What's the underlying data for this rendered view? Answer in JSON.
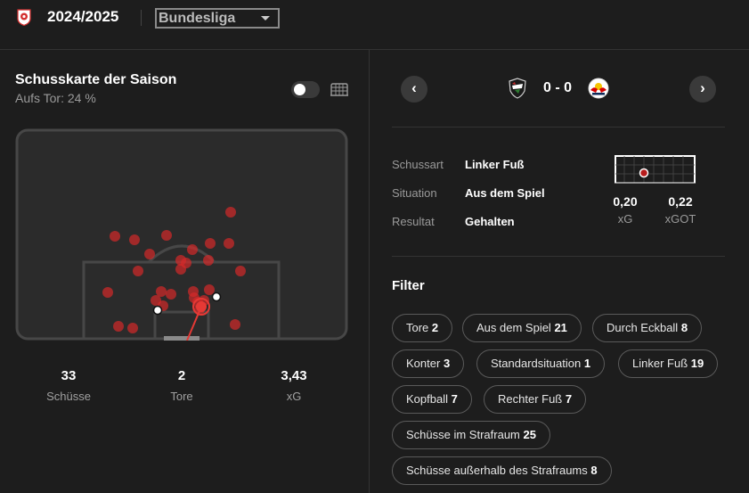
{
  "header": {
    "season": "2024/2025",
    "league": "Bundesliga"
  },
  "left": {
    "title": "Schusskarte der Saison",
    "subtitle": "Aufs Tor: 24 %",
    "stats": [
      {
        "value": "33",
        "label": "Schüsse"
      },
      {
        "value": "2",
        "label": "Tore"
      },
      {
        "value": "3,43",
        "label": "xG"
      }
    ]
  },
  "right": {
    "score": "0 - 0",
    "details": [
      {
        "key": "Schussart",
        "value": "Linker Fuß"
      },
      {
        "key": "Situation",
        "value": "Aus dem Spiel"
      },
      {
        "key": "Resultat",
        "value": "Gehalten"
      }
    ],
    "xg": {
      "value": "0,20",
      "label": "xG"
    },
    "xgot": {
      "value": "0,22",
      "label": "xGOT"
    },
    "filter_title": "Filter",
    "filters": [
      {
        "label": "Tore",
        "count": "2"
      },
      {
        "label": "Aus dem Spiel",
        "count": "21"
      },
      {
        "label": "Durch Eckball",
        "count": "8"
      },
      {
        "label": "Konter",
        "count": "3"
      },
      {
        "label": "Standardsituation",
        "count": "1"
      },
      {
        "label": "Linker Fuß",
        "count": "19"
      },
      {
        "label": "Kopfball",
        "count": "7"
      },
      {
        "label": "Rechter Fuß",
        "count": "7"
      },
      {
        "label": "Schüsse im Strafraum",
        "count": "25"
      },
      {
        "label": "Schüsse außerhalb des Strafraums",
        "count": "8"
      }
    ]
  },
  "colors": {
    "shot": "#d42a2a",
    "background": "#1d1d1d",
    "pitch": "#2b2b2b"
  }
}
